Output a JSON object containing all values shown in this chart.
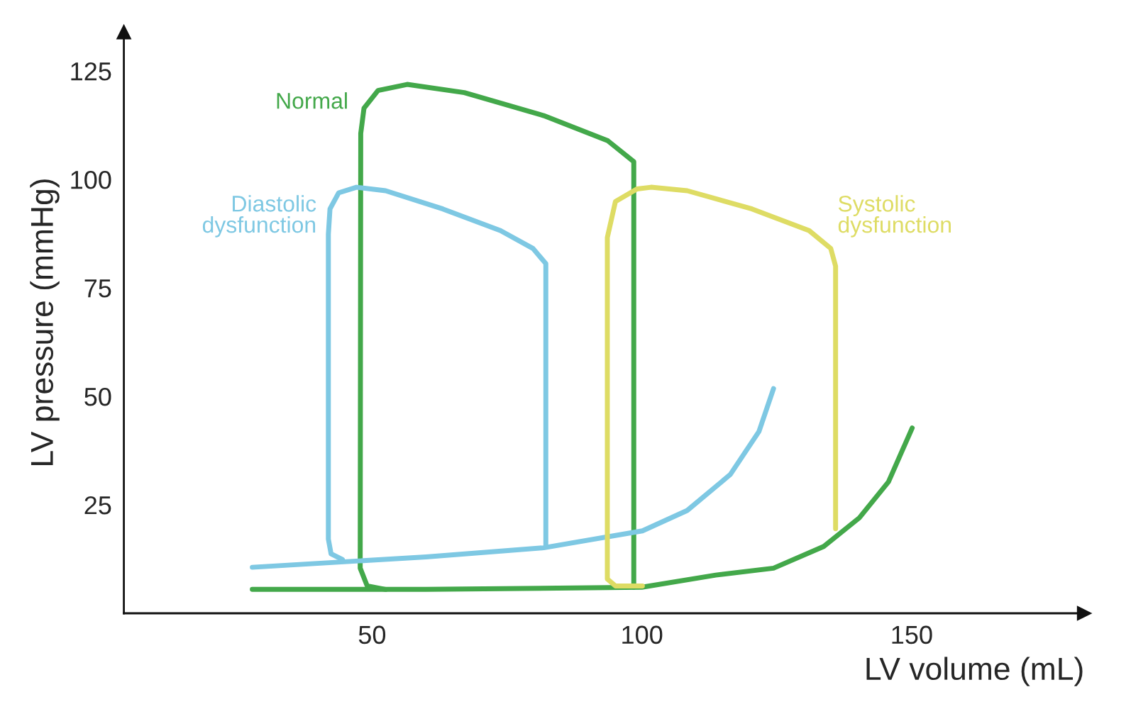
{
  "chart_data": {
    "type": "line",
    "xlabel": "LV volume (mL)",
    "ylabel": "LV pressure (mmHg)",
    "xlim": [
      4,
      182
    ],
    "ylim": [
      0,
      134
    ],
    "xticks": [
      50,
      100,
      150
    ],
    "yticks": [
      25,
      50,
      75,
      100,
      125
    ],
    "grid": false,
    "legend": false,
    "marker": "none",
    "line_style": "solid",
    "series": [
      {
        "name": "Normal",
        "color": "#43a84a",
        "x": [
          98.5,
          98.5,
          93.7,
          81.8,
          67.1,
          56.5,
          51.1,
          48.5,
          47.9,
          47.8,
          49.1,
          52.5
        ],
        "values": [
          6,
          104.1,
          108.9,
          114.7,
          120,
          121.9,
          120.5,
          116.4,
          110.6,
          10.4,
          6.3,
          5.5
        ]
      },
      {
        "color": "#43a84a",
        "x": [
          27.8,
          60,
          100,
          113.7,
          124.4,
          133.7,
          140.3,
          145.7,
          150.1
        ],
        "values": [
          5.5,
          5.5,
          6,
          8.8,
          10.4,
          15.4,
          22,
          30.3,
          42.7
        ]
      },
      {
        "name": "Diastolic\ndysfunction",
        "color": "#7ec8e3",
        "x": [
          82.2,
          82.2,
          79.8,
          73.8,
          63.1,
          52.5,
          47.1,
          43.8,
          42.2,
          41.9,
          41.9,
          42.4,
          44.5
        ],
        "values": [
          15.5,
          80.6,
          84.1,
          88.2,
          93.2,
          97.4,
          98.2,
          96.9,
          93.2,
          87.4,
          17.1,
          13.7,
          12.4
        ]
      },
      {
        "color": "#7ec8e3",
        "x": [
          27.8,
          60,
          81.8,
          100.1,
          108.4,
          116.4,
          121.7,
          124.4
        ],
        "values": [
          10.6,
          13,
          15.1,
          19,
          23.7,
          32,
          41.9,
          51.8
        ]
      },
      {
        "name": "Systolic\ndysfunction",
        "color": "#dedc64",
        "x": [
          100.1,
          95.1,
          93.6,
          93.6,
          95.1,
          99.1,
          101.7,
          108.4,
          120.4,
          131,
          135,
          135.9,
          135.9
        ],
        "values": [
          6.3,
          6.3,
          7.9,
          86.6,
          94.9,
          97.8,
          98.2,
          97.4,
          93.2,
          88.2,
          84.1,
          80,
          19.5
        ]
      }
    ]
  }
}
